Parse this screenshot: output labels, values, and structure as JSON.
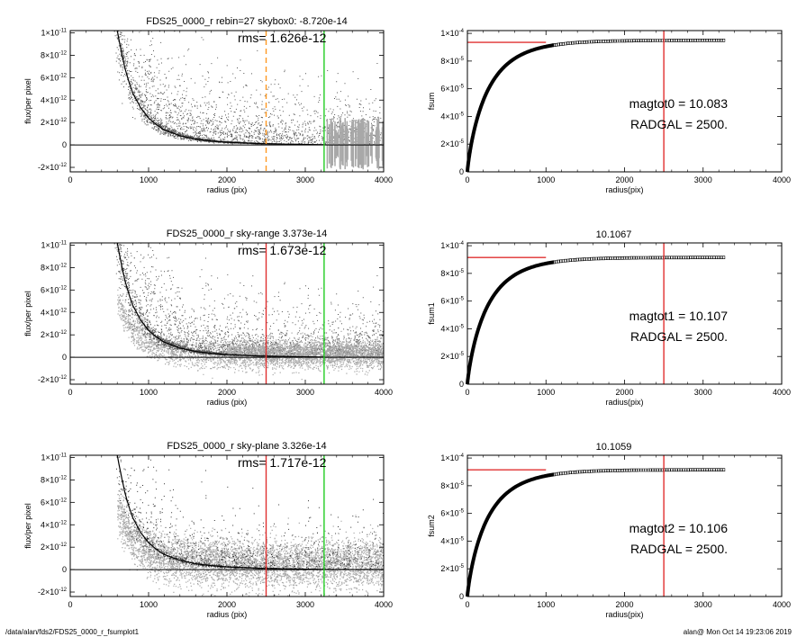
{
  "footer": {
    "path": "/data/alan/fds2/FDS25_0000_r_fsumplot1",
    "stamp": "alan@  Mon Oct 14 19:23:06 2019"
  },
  "colors": {
    "scatter_dark": "#555555",
    "scatter_light": "#a8a8a8",
    "profile": "#000000",
    "red_line": "#e03030",
    "green_line": "#22cc22",
    "orange_dashed": "#ff9922"
  },
  "chart_data": [
    {
      "type": "scatter",
      "title": "FDS25_0000_r rebin=27    skybox0: -8.720e-14",
      "annotation": "rms= 1.626e-12",
      "xlabel": "radius (pix)",
      "ylabel": "flux/per pixel",
      "xlim": [
        0,
        4000
      ],
      "ylim": [
        -2.4e-12,
        1.02e-11
      ],
      "xticks": [
        "0",
        "1000",
        "2000",
        "3000",
        "4000"
      ],
      "yticks": [
        {
          "value": 1e-11,
          "base": "1×10",
          "exp": "-11"
        },
        {
          "value": 8e-12,
          "base": "8×10",
          "exp": "-12"
        },
        {
          "value": 6e-12,
          "base": "6×10",
          "exp": "-12"
        },
        {
          "value": 4e-12,
          "base": "4×10",
          "exp": "-12"
        },
        {
          "value": 2e-12,
          "base": "2×10",
          "exp": "-12"
        },
        {
          "value": 0,
          "base": "0",
          "exp": ""
        },
        {
          "value": -2e-12,
          "base": "-2×10",
          "exp": "-12"
        }
      ],
      "vlines": [
        {
          "x": 2500,
          "color": "#ff9922",
          "style": "dashed"
        },
        {
          "x": 3240,
          "color": "#22cc22",
          "style": "solid"
        }
      ],
      "zero_line": true,
      "profile": {
        "x": [
          600,
          650,
          700,
          750,
          800,
          900,
          1000,
          1100,
          1200,
          1400,
          1600,
          1800,
          2000,
          2400,
          2800,
          3240
        ],
        "y": [
          1.02e-11,
          8.4e-12,
          6.8e-12,
          5.6e-12,
          4.6e-12,
          3.3e-12,
          2.4e-12,
          1.8e-12,
          1.35e-12,
          8.2e-13,
          5.2e-13,
          3.5e-13,
          2.4e-13,
          1.2e-13,
          6e-14,
          2e-14
        ]
      },
      "scatter_style": "dark"
    },
    {
      "type": "scatter",
      "title": "FDS25_0000_r sky-range  3.373e-14",
      "annotation": "rms= 1.673e-12",
      "xlabel": "radius (pix)",
      "ylabel": "flux/per pixel",
      "xlim": [
        0,
        4000
      ],
      "ylim": [
        -2.4e-12,
        1.02e-11
      ],
      "xticks": [
        "0",
        "1000",
        "2000",
        "3000",
        "4000"
      ],
      "yticks": [
        {
          "value": 1e-11,
          "base": "1×10",
          "exp": "-11"
        },
        {
          "value": 8e-12,
          "base": "8×10",
          "exp": "-12"
        },
        {
          "value": 6e-12,
          "base": "6×10",
          "exp": "-12"
        },
        {
          "value": 4e-12,
          "base": "4×10",
          "exp": "-12"
        },
        {
          "value": 2e-12,
          "base": "2×10",
          "exp": "-12"
        },
        {
          "value": 0,
          "base": "0",
          "exp": ""
        },
        {
          "value": -2e-12,
          "base": "-2×10",
          "exp": "-12"
        }
      ],
      "vlines": [
        {
          "x": 2500,
          "color": "#e03030",
          "style": "solid"
        },
        {
          "x": 3240,
          "color": "#22cc22",
          "style": "solid"
        }
      ],
      "zero_line": true,
      "profile": {
        "x": [
          600,
          650,
          700,
          750,
          800,
          900,
          1000,
          1100,
          1200,
          1400,
          1600,
          1800,
          2000,
          2400,
          2800,
          3240
        ],
        "y": [
          1.02e-11,
          8.4e-12,
          6.8e-12,
          5.6e-12,
          4.6e-12,
          3.3e-12,
          2.4e-12,
          1.8e-12,
          1.35e-12,
          8.2e-13,
          5.2e-13,
          3.5e-13,
          2.4e-13,
          1.2e-13,
          6e-14,
          2e-14
        ]
      },
      "scatter_style": "mixed"
    },
    {
      "type": "scatter",
      "title": "FDS25_0000_r sky-plane  3.326e-14",
      "annotation": "rms= 1.717e-12",
      "xlabel": "radius (pix)",
      "ylabel": "flux/per pixel",
      "xlim": [
        0,
        4000
      ],
      "ylim": [
        -2.4e-12,
        1.02e-11
      ],
      "xticks": [
        "0",
        "1000",
        "2000",
        "3000",
        "4000"
      ],
      "yticks": [
        {
          "value": 1e-11,
          "base": "1×10",
          "exp": "-11"
        },
        {
          "value": 8e-12,
          "base": "8×10",
          "exp": "-12"
        },
        {
          "value": 6e-12,
          "base": "6×10",
          "exp": "-12"
        },
        {
          "value": 4e-12,
          "base": "4×10",
          "exp": "-12"
        },
        {
          "value": 2e-12,
          "base": "2×10",
          "exp": "-12"
        },
        {
          "value": 0,
          "base": "0",
          "exp": ""
        },
        {
          "value": -2e-12,
          "base": "-2×10",
          "exp": "-12"
        }
      ],
      "vlines": [
        {
          "x": 2500,
          "color": "#e03030",
          "style": "solid"
        },
        {
          "x": 3240,
          "color": "#22cc22",
          "style": "solid"
        }
      ],
      "zero_line": true,
      "profile": {
        "x": [
          600,
          650,
          700,
          750,
          800,
          900,
          1000,
          1100,
          1200,
          1400,
          1600,
          1800,
          2000,
          2400,
          2800,
          3240
        ],
        "y": [
          1.02e-11,
          8.4e-12,
          6.8e-12,
          5.6e-12,
          4.6e-12,
          3.3e-12,
          2.4e-12,
          1.8e-12,
          1.35e-12,
          8.2e-13,
          5.2e-13,
          3.5e-13,
          2.4e-13,
          1.2e-13,
          6e-14,
          2e-14
        ]
      },
      "scatter_style": "light"
    },
    {
      "type": "line",
      "title": "",
      "annotation_lines": [
        "magtot0 =  10.083",
        "RADGAL =   2500."
      ],
      "xlabel": "radius(pix)",
      "ylabel": "fsum",
      "xlim": [
        0,
        4000
      ],
      "ylim": [
        0,
        0.000102
      ],
      "xticks": [
        "0",
        "1000",
        "2000",
        "3000",
        "4000"
      ],
      "yticks": [
        {
          "value": 0,
          "base": "0",
          "exp": ""
        },
        {
          "value": 2e-05,
          "base": "2×10",
          "exp": "-5"
        },
        {
          "value": 4e-05,
          "base": "4×10",
          "exp": "-5"
        },
        {
          "value": 6e-05,
          "base": "6×10",
          "exp": "-5"
        },
        {
          "value": 8e-05,
          "base": "8×10",
          "exp": "-5"
        },
        {
          "value": 0.0001,
          "base": "1×10",
          "exp": "-4"
        }
      ],
      "asymptote": {
        "y": 9.35e-05,
        "x": [
          0,
          1000
        ],
        "color": "#e03030"
      },
      "vline": {
        "x": 2500,
        "color": "#e03030"
      },
      "curve": {
        "asymptote": 9.5e-05,
        "scale": 270,
        "xmax": 3270
      }
    },
    {
      "type": "line",
      "title": "10.1067",
      "annotation_lines": [
        "magtot1 =  10.107",
        "RADGAL =   2500."
      ],
      "xlabel": "radius(pix)",
      "ylabel": "fsum1",
      "xlim": [
        0,
        4000
      ],
      "ylim": [
        0,
        0.000102
      ],
      "xticks": [
        "0",
        "1000",
        "2000",
        "3000",
        "4000"
      ],
      "yticks": [
        {
          "value": 0,
          "base": "0",
          "exp": ""
        },
        {
          "value": 2e-05,
          "base": "2×10",
          "exp": "-5"
        },
        {
          "value": 4e-05,
          "base": "4×10",
          "exp": "-5"
        },
        {
          "value": 6e-05,
          "base": "6×10",
          "exp": "-5"
        },
        {
          "value": 8e-05,
          "base": "8×10",
          "exp": "-5"
        },
        {
          "value": 0.0001,
          "base": "1×10",
          "exp": "-4"
        }
      ],
      "asymptote": {
        "y": 9.15e-05,
        "x": [
          0,
          1000
        ],
        "color": "#e03030"
      },
      "vline": {
        "x": 2500,
        "color": "#e03030"
      },
      "curve": {
        "asymptote": 9.15e-05,
        "scale": 270,
        "xmax": 3270
      }
    },
    {
      "type": "line",
      "title": "10.1059",
      "annotation_lines": [
        "magtot2 =  10.106",
        "RADGAL =   2500."
      ],
      "xlabel": "radius(pix)",
      "ylabel": "fsum2",
      "xlim": [
        0,
        4000
      ],
      "ylim": [
        0,
        0.000102
      ],
      "xticks": [
        "0",
        "1000",
        "2000",
        "3000",
        "4000"
      ],
      "yticks": [
        {
          "value": 0,
          "base": "0",
          "exp": ""
        },
        {
          "value": 2e-05,
          "base": "2×10",
          "exp": "-5"
        },
        {
          "value": 4e-05,
          "base": "4×10",
          "exp": "-5"
        },
        {
          "value": 6e-05,
          "base": "6×10",
          "exp": "-5"
        },
        {
          "value": 8e-05,
          "base": "8×10",
          "exp": "-5"
        },
        {
          "value": 0.0001,
          "base": "1×10",
          "exp": "-4"
        }
      ],
      "asymptote": {
        "y": 9.15e-05,
        "x": [
          0,
          1000
        ],
        "color": "#e03030"
      },
      "vline": {
        "x": 2500,
        "color": "#e03030"
      },
      "curve": {
        "asymptote": 9.15e-05,
        "scale": 270,
        "xmax": 3270
      }
    }
  ]
}
